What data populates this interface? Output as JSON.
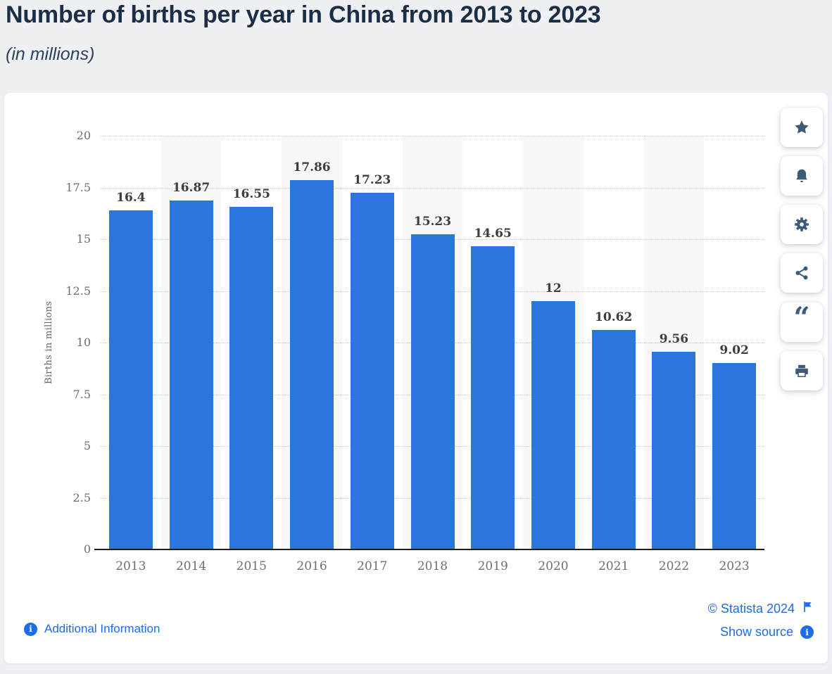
{
  "header": {
    "title": "Number of births per year in China from 2013 to 2023",
    "subtitle": "(in millions)"
  },
  "chart_data": {
    "type": "bar",
    "title": "Number of births per year in China from 2013 to 2023",
    "subtitle": "(in millions)",
    "categories": [
      "2013",
      "2014",
      "2015",
      "2016",
      "2017",
      "2018",
      "2019",
      "2020",
      "2021",
      "2022",
      "2023"
    ],
    "values": [
      16.4,
      16.87,
      16.55,
      17.86,
      17.23,
      15.23,
      14.65,
      12,
      10.62,
      9.56,
      9.02
    ],
    "value_labels": [
      "16.4",
      "16.87",
      "16.55",
      "17.86",
      "17.23",
      "15.23",
      "14.65",
      "12",
      "10.62",
      "9.56",
      "9.02"
    ],
    "xlabel": "",
    "ylabel": "Births in millions",
    "ylim": [
      0,
      20
    ],
    "yticks": [
      0,
      2.5,
      5,
      7.5,
      10,
      12.5,
      15,
      17.5,
      20
    ],
    "ytick_labels": [
      "0",
      "2.5",
      "5",
      "7.5",
      "10",
      "12.5",
      "15",
      "17.5",
      "20"
    ],
    "grid": "horizontal-dotted",
    "legend": "none",
    "bar_color": "#2a76dd",
    "alt_band_color": "#f8f8f8"
  },
  "toolbar": {
    "items": [
      {
        "name": "favorite",
        "icon": "star-icon"
      },
      {
        "name": "alert",
        "icon": "bell-icon"
      },
      {
        "name": "settings",
        "icon": "gear-icon"
      },
      {
        "name": "share",
        "icon": "share-icon"
      },
      {
        "name": "cite",
        "icon": "quote-icon"
      },
      {
        "name": "print",
        "icon": "printer-icon"
      }
    ],
    "icon_color": "#3d5a77"
  },
  "footer": {
    "additional_information_label": "Additional Information",
    "copyright_label": "© Statista 2024",
    "show_source_label": "Show source",
    "quote_glyph": "“",
    "info_glyph": "i",
    "link_color": "#1c6ceb"
  }
}
